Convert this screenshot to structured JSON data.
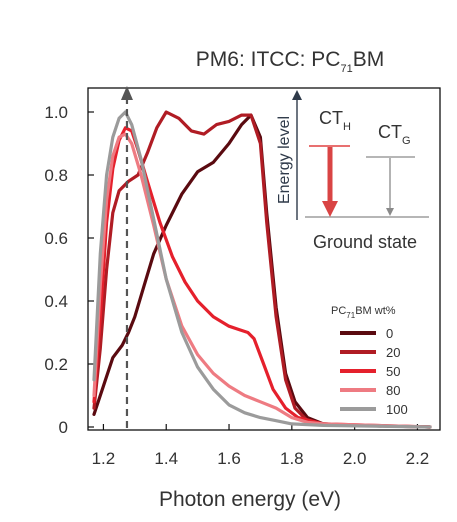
{
  "chart_data": {
    "type": "line",
    "title": {
      "main": "PM6: ITCC: PC",
      "sub": "71",
      "tail": "BM"
    },
    "xlabel": "Photon energy (eV)",
    "ylabel": "",
    "xlim": [
      1.16,
      2.3
    ],
    "ylim": [
      0,
      1.08
    ],
    "x_ticks": [
      1.2,
      1.4,
      1.6,
      1.8,
      2.0,
      2.2
    ],
    "x_tick_labels": [
      "1.2",
      "1.4",
      "1.6",
      "1.8",
      "2.0",
      "2.2"
    ],
    "y_ticks": [
      0,
      0.2,
      0.4,
      0.6,
      0.8,
      1.0
    ],
    "y_tick_labels": [
      "0",
      "0.2",
      "0.4",
      "0.6",
      "0.8",
      "1.0"
    ],
    "grid": false,
    "legend": {
      "title": {
        "main": "PC",
        "sub": "71",
        "tail": "BM wt%"
      },
      "placement": "bottom-right"
    },
    "series": [
      {
        "name": "0",
        "color": "#5a0a10",
        "points": [
          [
            1.17,
            0.04
          ],
          [
            1.2,
            0.13
          ],
          [
            1.23,
            0.22
          ],
          [
            1.26,
            0.26
          ],
          [
            1.28,
            0.3
          ],
          [
            1.3,
            0.35
          ],
          [
            1.33,
            0.45
          ],
          [
            1.36,
            0.55
          ],
          [
            1.4,
            0.64
          ],
          [
            1.45,
            0.74
          ],
          [
            1.5,
            0.81
          ],
          [
            1.55,
            0.84
          ],
          [
            1.6,
            0.9
          ],
          [
            1.64,
            0.96
          ],
          [
            1.67,
            0.99
          ],
          [
            1.7,
            0.92
          ],
          [
            1.72,
            0.68
          ],
          [
            1.75,
            0.38
          ],
          [
            1.78,
            0.17
          ],
          [
            1.81,
            0.08
          ],
          [
            1.85,
            0.03
          ],
          [
            1.9,
            0.01
          ],
          [
            2.0,
            0.005
          ],
          [
            2.24,
            0.0
          ]
        ]
      },
      {
        "name": "20",
        "color": "#b01c24",
        "points": [
          [
            1.17,
            0.06
          ],
          [
            1.19,
            0.25
          ],
          [
            1.21,
            0.5
          ],
          [
            1.23,
            0.68
          ],
          [
            1.25,
            0.75
          ],
          [
            1.28,
            0.78
          ],
          [
            1.31,
            0.8
          ],
          [
            1.34,
            0.87
          ],
          [
            1.37,
            0.95
          ],
          [
            1.4,
            1.0
          ],
          [
            1.44,
            0.98
          ],
          [
            1.48,
            0.94
          ],
          [
            1.52,
            0.93
          ],
          [
            1.56,
            0.96
          ],
          [
            1.6,
            0.97
          ],
          [
            1.64,
            0.99
          ],
          [
            1.67,
            0.99
          ],
          [
            1.7,
            0.9
          ],
          [
            1.72,
            0.65
          ],
          [
            1.75,
            0.35
          ],
          [
            1.78,
            0.15
          ],
          [
            1.81,
            0.06
          ],
          [
            1.85,
            0.02
          ],
          [
            1.9,
            0.01
          ],
          [
            2.0,
            0.005
          ],
          [
            2.24,
            0.0
          ]
        ]
      },
      {
        "name": "50",
        "color": "#e5202c",
        "points": [
          [
            1.17,
            0.08
          ],
          [
            1.19,
            0.35
          ],
          [
            1.21,
            0.65
          ],
          [
            1.23,
            0.82
          ],
          [
            1.25,
            0.91
          ],
          [
            1.27,
            0.95
          ],
          [
            1.29,
            0.94
          ],
          [
            1.31,
            0.88
          ],
          [
            1.34,
            0.78
          ],
          [
            1.38,
            0.65
          ],
          [
            1.42,
            0.54
          ],
          [
            1.46,
            0.46
          ],
          [
            1.5,
            0.4
          ],
          [
            1.55,
            0.35
          ],
          [
            1.6,
            0.32
          ],
          [
            1.63,
            0.31
          ],
          [
            1.66,
            0.3
          ],
          [
            1.68,
            0.28
          ],
          [
            1.71,
            0.2
          ],
          [
            1.74,
            0.12
          ],
          [
            1.78,
            0.06
          ],
          [
            1.82,
            0.03
          ],
          [
            1.9,
            0.01
          ],
          [
            2.24,
            0.0
          ]
        ]
      },
      {
        "name": "80",
        "color": "#ee7b82",
        "points": [
          [
            1.17,
            0.1
          ],
          [
            1.19,
            0.45
          ],
          [
            1.21,
            0.72
          ],
          [
            1.23,
            0.86
          ],
          [
            1.25,
            0.92
          ],
          [
            1.27,
            0.93
          ],
          [
            1.29,
            0.9
          ],
          [
            1.32,
            0.8
          ],
          [
            1.36,
            0.64
          ],
          [
            1.4,
            0.47
          ],
          [
            1.45,
            0.32
          ],
          [
            1.5,
            0.23
          ],
          [
            1.55,
            0.17
          ],
          [
            1.6,
            0.13
          ],
          [
            1.65,
            0.1
          ],
          [
            1.7,
            0.08
          ],
          [
            1.75,
            0.06
          ],
          [
            1.8,
            0.03
          ],
          [
            1.85,
            0.015
          ],
          [
            1.9,
            0.01
          ],
          [
            2.24,
            0.0
          ]
        ]
      },
      {
        "name": "100",
        "color": "#9b9b9b",
        "points": [
          [
            1.17,
            0.15
          ],
          [
            1.19,
            0.55
          ],
          [
            1.21,
            0.8
          ],
          [
            1.23,
            0.92
          ],
          [
            1.25,
            0.98
          ],
          [
            1.27,
            1.0
          ],
          [
            1.29,
            0.96
          ],
          [
            1.32,
            0.85
          ],
          [
            1.36,
            0.66
          ],
          [
            1.4,
            0.47
          ],
          [
            1.45,
            0.3
          ],
          [
            1.5,
            0.19
          ],
          [
            1.55,
            0.12
          ],
          [
            1.6,
            0.07
          ],
          [
            1.65,
            0.045
          ],
          [
            1.7,
            0.03
          ],
          [
            1.75,
            0.02
          ],
          [
            1.8,
            0.01
          ],
          [
            1.9,
            0.005
          ],
          [
            2.24,
            0.0
          ]
        ]
      }
    ],
    "annotations": {
      "marker_x": 1.275,
      "inset_axis_label": "Energy level",
      "ct_h": {
        "main": "CT",
        "sub": "H"
      },
      "ct_g": {
        "main": "CT",
        "sub": "G"
      },
      "ground": "Ground state"
    }
  }
}
